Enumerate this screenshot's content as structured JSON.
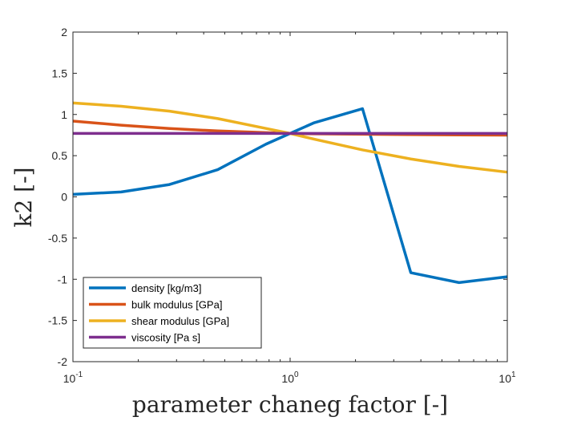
{
  "chart_data": {
    "type": "line",
    "xlabel": "parameter chaneg factor [-]",
    "ylabel": "k2 [-]",
    "xscale": "log",
    "xlim": [
      0.1,
      10
    ],
    "ylim": [
      -2,
      2
    ],
    "grid": false,
    "legend_position": "bottom-left",
    "x_ticks": [
      {
        "value": 0.1,
        "base": "10",
        "exp": "-1"
      },
      {
        "value": 1,
        "base": "10",
        "exp": "0"
      },
      {
        "value": 10,
        "base": "10",
        "exp": "1"
      }
    ],
    "y_ticks": [
      "-2",
      "-1.5",
      "-1",
      "-0.5",
      "0",
      "0.5",
      "1",
      "1.5",
      "2"
    ],
    "series": [
      {
        "name": "density [kg/m3]",
        "color": "#0072BD",
        "x": [
          0.1,
          0.1668,
          0.2783,
          0.4642,
          0.7743,
          1.0,
          1.2915,
          2.1544,
          3.5938,
          5.9948,
          10
        ],
        "y": [
          0.03,
          0.06,
          0.15,
          0.33,
          0.64,
          0.77,
          0.9,
          1.07,
          -0.92,
          -1.04,
          -0.97
        ]
      },
      {
        "name": "bulk modulus [GPa]",
        "color": "#D95319",
        "x": [
          0.1,
          0.1668,
          0.2783,
          0.4642,
          0.7743,
          1.0,
          1.2915,
          2.1544,
          3.5938,
          5.9948,
          10
        ],
        "y": [
          0.92,
          0.87,
          0.83,
          0.8,
          0.78,
          0.77,
          0.765,
          0.76,
          0.755,
          0.752,
          0.75
        ]
      },
      {
        "name": "shear modulus [GPa]",
        "color": "#EDB120",
        "x": [
          0.1,
          0.1668,
          0.2783,
          0.4642,
          0.7743,
          1.0,
          1.2915,
          2.1544,
          3.5938,
          5.9948,
          10
        ],
        "y": [
          1.14,
          1.1,
          1.04,
          0.95,
          0.83,
          0.77,
          0.7,
          0.57,
          0.46,
          0.37,
          0.3
        ]
      },
      {
        "name": "viscosity [Pa s]",
        "color": "#7E2F8E",
        "x": [
          0.1,
          0.1668,
          0.2783,
          0.4642,
          0.7743,
          1.0,
          1.2915,
          2.1544,
          3.5938,
          5.9948,
          10
        ],
        "y": [
          0.77,
          0.77,
          0.77,
          0.77,
          0.77,
          0.77,
          0.77,
          0.77,
          0.77,
          0.77,
          0.77
        ]
      }
    ]
  }
}
